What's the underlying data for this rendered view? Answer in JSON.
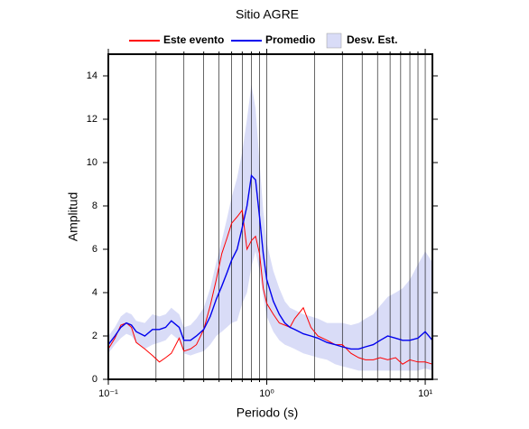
{
  "chart_data": {
    "type": "line",
    "title": "Sitio AGRE",
    "x_label": "Periodo (s)",
    "y_label": "Amplitud",
    "xlog": true,
    "grid": "x",
    "legend": "top",
    "xlim": [
      0.1,
      11.1
    ],
    "ylim": [
      0,
      15
    ],
    "xticks": [
      {
        "value": 0.1,
        "label": "10⁻¹"
      },
      {
        "value": 1,
        "label": "10⁰"
      },
      {
        "value": 10,
        "label": "10¹"
      }
    ],
    "xminorticks": [
      0.2,
      0.3,
      0.4,
      0.5,
      0.6,
      0.7,
      0.8,
      0.9,
      2,
      3,
      4,
      5,
      6,
      7,
      8,
      9
    ],
    "yticks": [
      0,
      2,
      4,
      6,
      8,
      10,
      12,
      14
    ],
    "x": [
      0.1,
      0.11,
      0.12,
      0.13,
      0.14,
      0.15,
      0.17,
      0.19,
      0.21,
      0.23,
      0.25,
      0.28,
      0.3,
      0.33,
      0.36,
      0.4,
      0.44,
      0.48,
      0.52,
      0.56,
      0.6,
      0.65,
      0.7,
      0.75,
      0.8,
      0.85,
      0.9,
      0.95,
      1.0,
      1.1,
      1.2,
      1.3,
      1.4,
      1.5,
      1.7,
      1.9,
      2.1,
      2.4,
      2.7,
      3,
      3.4,
      3.8,
      4.2,
      4.7,
      5.2,
      5.8,
      6.5,
      7.2,
      8,
      9,
      10,
      11.1
    ],
    "series": [
      {
        "name": "Este evento",
        "color": "#ff0000",
        "values": [
          1.4,
          1.9,
          2.5,
          2.6,
          2.4,
          1.7,
          1.4,
          1.1,
          0.8,
          1.0,
          1.2,
          1.9,
          1.3,
          1.4,
          1.6,
          2.3,
          3.4,
          4.6,
          5.8,
          6.5,
          7.2,
          7.5,
          7.8,
          6.0,
          6.4,
          6.6,
          5.8,
          4.2,
          3.5,
          3.0,
          2.6,
          2.5,
          2.4,
          2.8,
          3.3,
          2.4,
          2.0,
          1.8,
          1.6,
          1.6,
          1.2,
          1.0,
          0.9,
          0.9,
          1.0,
          0.9,
          1.0,
          0.7,
          0.9,
          0.8,
          0.8,
          0.7
        ]
      },
      {
        "name": "Promedio",
        "color": "#0000ee",
        "values": [
          1.6,
          2.0,
          2.4,
          2.6,
          2.5,
          2.2,
          2.0,
          2.3,
          2.3,
          2.4,
          2.7,
          2.4,
          1.8,
          1.8,
          2.0,
          2.3,
          2.9,
          3.7,
          4.3,
          4.9,
          5.5,
          6.0,
          7.0,
          8.0,
          9.4,
          9.2,
          7.5,
          5.8,
          4.6,
          3.6,
          3.0,
          2.6,
          2.4,
          2.3,
          2.1,
          2.0,
          1.9,
          1.7,
          1.6,
          1.5,
          1.4,
          1.4,
          1.5,
          1.6,
          1.8,
          2.0,
          1.9,
          1.8,
          1.8,
          1.9,
          2.2,
          1.8
        ]
      },
      {
        "name": "Desv. Est.",
        "color": "#d9dcf7",
        "kind": "band",
        "upper": [
          2.0,
          2.4,
          2.9,
          3.1,
          3.0,
          2.7,
          2.6,
          3.0,
          2.9,
          3.0,
          3.3,
          3.0,
          2.4,
          2.5,
          2.8,
          3.3,
          4.2,
          5.4,
          6.4,
          7.4,
          8.4,
          9.3,
          10.5,
          12.0,
          13.6,
          12.5,
          10.0,
          7.8,
          6.3,
          5.0,
          4.2,
          3.6,
          3.3,
          3.2,
          3.0,
          2.9,
          2.8,
          2.6,
          2.6,
          2.6,
          2.5,
          2.6,
          2.8,
          3.0,
          3.4,
          3.8,
          4.0,
          4.2,
          4.6,
          5.3,
          5.9,
          5.4
        ],
        "lower": [
          1.2,
          1.6,
          1.9,
          2.1,
          2.0,
          1.7,
          1.4,
          1.6,
          1.7,
          1.8,
          2.1,
          1.8,
          1.2,
          1.1,
          1.2,
          1.3,
          1.6,
          2.0,
          2.2,
          2.4,
          2.6,
          2.7,
          3.5,
          4.0,
          5.2,
          5.9,
          5.0,
          3.8,
          2.9,
          2.2,
          1.8,
          1.6,
          1.5,
          1.4,
          1.2,
          1.1,
          1.0,
          0.9,
          0.7,
          0.6,
          0.5,
          0.4,
          0.4,
          0.4,
          0.4,
          0.4,
          0.4,
          0.4,
          0.4,
          0.4,
          0.5,
          0.4
        ]
      }
    ]
  }
}
